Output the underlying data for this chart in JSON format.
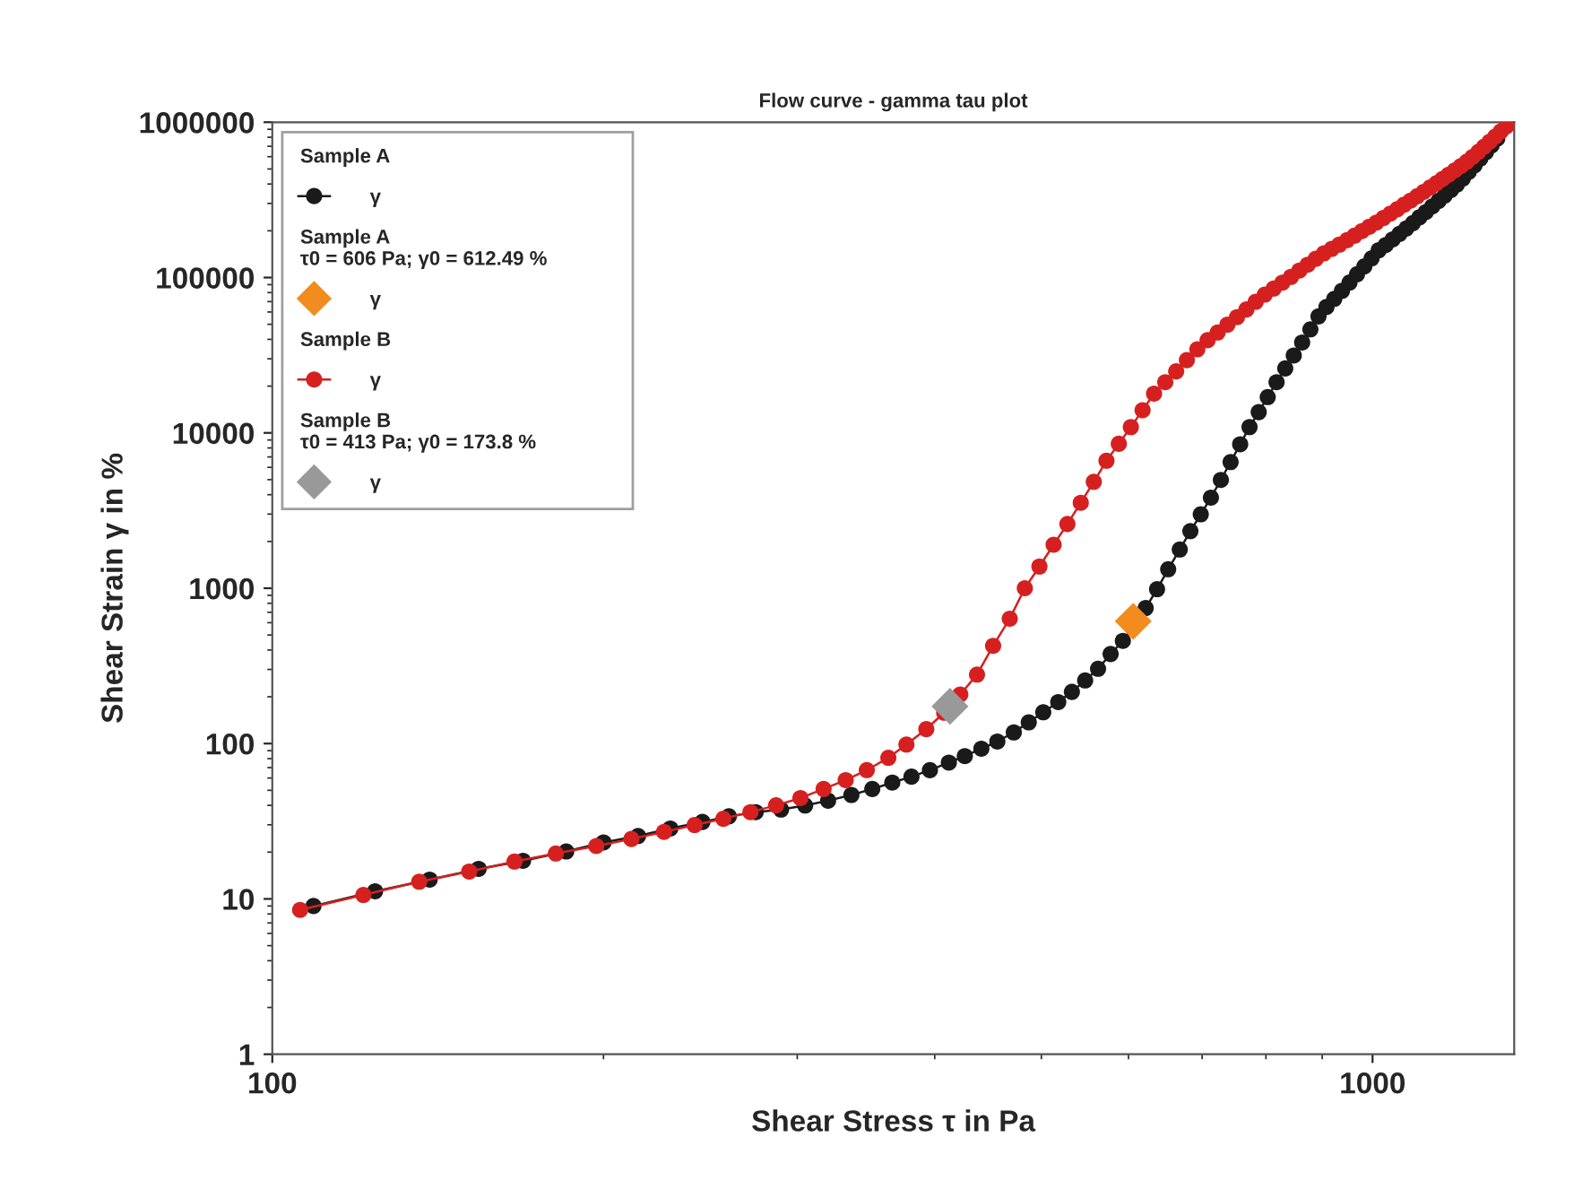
{
  "chart_data": {
    "type": "line",
    "title": "Flow curve - gamma tau plot",
    "xlabel": "Shear Stress τ in Pa",
    "ylabel": "Shear Strain γ in %",
    "annotations": [
      "Sample A",
      "Sample A\nτ0 = 606 Pa; γ0 = 612.49 %",
      "Sample B",
      "Sample B\nτ0 = 413 Pa; γ0 = 173.8 %"
    ],
    "log": "xy",
    "xlim": [
      100,
      1345
    ],
    "ylim": [
      1,
      1000000
    ],
    "xticks": [
      100,
      1000
    ],
    "yticks": [
      1,
      10,
      100,
      1000,
      10000,
      100000,
      1000000
    ],
    "grid": false,
    "legend": "top left",
    "series": [
      {
        "name": "γ",
        "marker": "circle",
        "line_style": "solid",
        "color": "#1a1a1a",
        "x": [
          109,
          124,
          139,
          154,
          169,
          185,
          200,
          215,
          230,
          246,
          260,
          275,
          290,
          305,
          320,
          336,
          351,
          366,
          381,
          396,
          412,
          426,
          441,
          456,
          472,
          487,
          502,
          518,
          533,
          548,
          563,
          578,
          593,
          608,
          622,
          637,
          652,
          668,
          683,
          698,
          713,
          728,
          743,
          758,
          773,
          788,
          803,
          818,
          833,
          848,
          863,
          878,
          893,
          908,
          923,
          938,
          953,
          968,
          983,
          998,
          1013,
          1028,
          1043,
          1058,
          1073,
          1088,
          1103,
          1118,
          1133,
          1148,
          1163,
          1178,
          1193,
          1208,
          1223,
          1238,
          1253,
          1268,
          1283,
          1298
        ],
        "values": [
          9.0,
          11.2,
          13.3,
          15.6,
          17.6,
          20.2,
          23.1,
          25.4,
          28.4,
          31.3,
          34.0,
          36.2,
          37.6,
          39.9,
          42.9,
          46.7,
          51,
          56.1,
          61.2,
          67.4,
          75.4,
          83,
          92.7,
          103,
          118,
          137,
          159,
          185,
          215,
          255,
          303,
          377,
          458,
          null,
          746,
          986,
          1325,
          1775,
          2330,
          2990,
          3830,
          4980,
          6490,
          8450,
          10900,
          13600,
          17000,
          21200,
          26000,
          31500,
          38200,
          46400,
          56200,
          64600,
          72900,
          82200,
          92900,
          105000,
          118000,
          133000,
          150000,
          162000,
          176000,
          191000,
          207000,
          224000,
          244000,
          264000,
          287000,
          311000,
          337000,
          366000,
          397000,
          434000,
          479000,
          528000,
          583000,
          643000,
          710000,
          783000
        ]
      },
      {
        "name": "γ",
        "type": "scatter",
        "marker": "diamond",
        "color": "#f28c1e",
        "x": [
          606
        ],
        "values": [
          612.49
        ]
      },
      {
        "name": "γ",
        "marker": "circle",
        "line_style": "solid",
        "color": "#d62020",
        "x": [
          106,
          121,
          136,
          151,
          166,
          181,
          197,
          212,
          227,
          242,
          257,
          272,
          287,
          302,
          317,
          332,
          347,
          363,
          377,
          393,
          408,
          422,
          437,
          452,
          468,
          483,
          498,
          513,
          528,
          543,
          558,
          573,
          588,
          603,
          618,
          633,
          648,
          663,
          678,
          693,
          708,
          723,
          738,
          753,
          768,
          783,
          798,
          813,
          828,
          843,
          858,
          873,
          888,
          903,
          918,
          933,
          948,
          963,
          978,
          993,
          1008,
          1023,
          1038,
          1053,
          1068,
          1083,
          1098,
          1113,
          1128,
          1143,
          1158,
          1173,
          1188,
          1203,
          1218,
          1233,
          1248,
          1263,
          1278,
          1293,
          1308,
          1323,
          1338
        ],
        "values": [
          8.5,
          10.6,
          12.9,
          15,
          17.4,
          19.6,
          21.9,
          24.3,
          27,
          29.9,
          32.8,
          36.2,
          40,
          44.6,
          51,
          58.2,
          67.5,
          81,
          98.6,
          124,
          158,
          207,
          278,
          426,
          637,
          1000,
          1380,
          1905,
          2590,
          3550,
          4840,
          6620,
          8510,
          10900,
          14000,
          17900,
          21200,
          24900,
          29400,
          34500,
          39500,
          44300,
          49700,
          55600,
          62300,
          69800,
          77600,
          84900,
          92700,
          101000,
          111000,
          121000,
          132000,
          143000,
          153000,
          163000,
          174000,
          186000,
          199000,
          212000,
          226000,
          242000,
          258000,
          275000,
          294000,
          313000,
          334000,
          356000,
          380000,
          405000,
          432000,
          460000,
          490000,
          522000,
          557000,
          598000,
          645000,
          695000,
          750000,
          809000,
          873000,
          942000,
          990000
        ]
      },
      {
        "name": "γ",
        "type": "scatter",
        "marker": "diamond",
        "color": "#999999",
        "x": [
          413
        ],
        "values": [
          173.8
        ]
      }
    ]
  }
}
